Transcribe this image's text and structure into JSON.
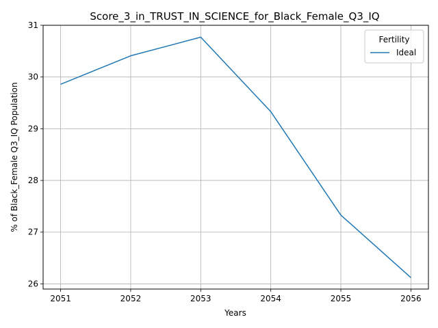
{
  "chart_data": {
    "type": "line",
    "title": "Score_3_in_TRUST_IN_SCIENCE_for_Black_Female_Q3_IQ",
    "xlabel": "Years",
    "ylabel": "% of Black_Female Q3_IQ Population",
    "x": [
      2051,
      2052,
      2053,
      2054,
      2055,
      2056
    ],
    "x_tick_labels": [
      "2051",
      "2052",
      "2053",
      "2054",
      "2055",
      "2056"
    ],
    "y_ticks": [
      26,
      27,
      28,
      29,
      30,
      31
    ],
    "y_tick_labels": [
      "26",
      "27",
      "28",
      "29",
      "30",
      "31"
    ],
    "xlim": [
      2050.75,
      2056.25
    ],
    "ylim": [
      25.9,
      31.0
    ],
    "grid": true,
    "legend": {
      "title": "Fertility",
      "placement": "top-right"
    },
    "series": [
      {
        "name": "Ideal",
        "color": "#1f77b4",
        "values": [
          29.86,
          30.41,
          30.77,
          29.33,
          27.33,
          26.12
        ]
      }
    ]
  }
}
